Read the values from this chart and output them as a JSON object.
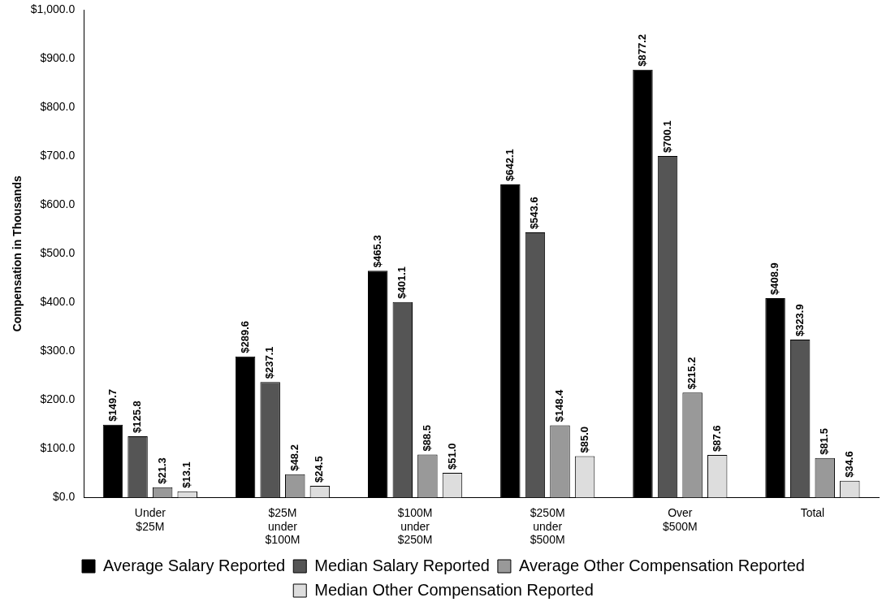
{
  "chart_data": {
    "type": "bar",
    "ylabel": "Compensation in Thousands",
    "categories": [
      "Under $25M",
      "$25M under $100M",
      "$100M under $250M",
      "$250M under $500M",
      "Over $500M",
      "Total"
    ],
    "series": [
      {
        "name": "Average Salary Reported",
        "color": "#000000",
        "values": [
          149.7,
          289.6,
          465.3,
          642.1,
          877.2,
          408.9
        ],
        "value_labels": [
          "$149.7",
          "$289.6",
          "$465.3",
          "$642.1",
          "$877.2",
          "$408.9"
        ]
      },
      {
        "name": "Median Salary Reported",
        "color": "#555555",
        "values": [
          125.8,
          237.1,
          401.1,
          543.6,
          700.1,
          323.9
        ],
        "value_labels": [
          "$125.8",
          "$237.1",
          "$401.1",
          "$543.6",
          "$700.1",
          "$323.9"
        ]
      },
      {
        "name": "Average Other Compensation Reported",
        "color": "#999999",
        "values": [
          21.3,
          48.2,
          88.5,
          148.4,
          215.2,
          81.5
        ],
        "value_labels": [
          "$21.3",
          "$48.2",
          "$88.5",
          "$148.4",
          "$215.2",
          "$81.5"
        ]
      },
      {
        "name": "Median Other Compensation Reported",
        "color": "#dddddd",
        "values": [
          13.1,
          24.5,
          51.0,
          85.0,
          87.6,
          34.6
        ],
        "value_labels": [
          "$13.1",
          "$24.5",
          "$51.0",
          "$85.0",
          "$87.6",
          "$34.6"
        ]
      }
    ],
    "ylim": [
      0,
      1000
    ],
    "yticks": [
      {
        "value": 0,
        "label": "$0.0"
      },
      {
        "value": 100,
        "label": "$100.0"
      },
      {
        "value": 200,
        "label": "$200.0"
      },
      {
        "value": 300,
        "label": "$300.0"
      },
      {
        "value": 400,
        "label": "$400.0"
      },
      {
        "value": 500,
        "label": "$500.0"
      },
      {
        "value": 600,
        "label": "$600.0"
      },
      {
        "value": 700,
        "label": "$700.0"
      },
      {
        "value": 800,
        "label": "$800.0"
      },
      {
        "value": 900,
        "label": "$900.0"
      },
      {
        "value": 1000,
        "label": "$1,000.0"
      }
    ],
    "grid": false,
    "legend": "bottom"
  }
}
